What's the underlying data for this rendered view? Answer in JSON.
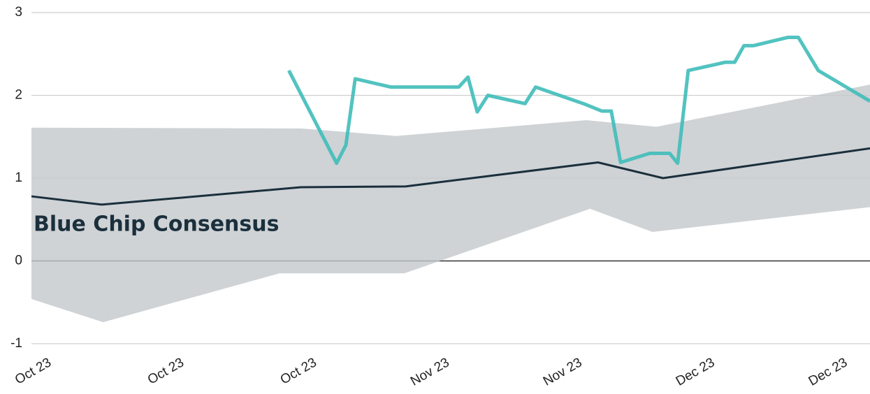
{
  "chart_data": {
    "type": "line",
    "annotation": "Blue Chip Consensus",
    "xlim": [
      0,
      6.32
    ],
    "xticks": [
      {
        "value": 0,
        "label": "Oct 23"
      },
      {
        "value": 1,
        "label": "Oct 23"
      },
      {
        "value": 2,
        "label": "Oct 23"
      },
      {
        "value": 3,
        "label": "Nov 23"
      },
      {
        "value": 4,
        "label": "Nov 23"
      },
      {
        "value": 5,
        "label": "Dec 23"
      },
      {
        "value": 6,
        "label": "Dec 23"
      }
    ],
    "ylim": [
      -1,
      3
    ],
    "yticks": [
      -1,
      0,
      1,
      2,
      3
    ],
    "grid": true,
    "band": {
      "color": "#c3c8cc",
      "upper": {
        "x": [
          0,
          2.03,
          2.75,
          4.18,
          4.71,
          6.32
        ],
        "values": [
          1.61,
          1.6,
          1.51,
          1.7,
          1.62,
          2.13
        ]
      },
      "lower": {
        "x": [
          0,
          0.54,
          1.87,
          2.81,
          4.21,
          4.68,
          6.32
        ],
        "values": [
          -0.46,
          -0.74,
          -0.15,
          -0.15,
          0.63,
          0.35,
          0.65
        ]
      }
    },
    "series": [
      {
        "color": "#1b2f3c",
        "width": 3,
        "x": [
          0,
          0.53,
          2.03,
          2.82,
          4.27,
          4.76,
          6.32
        ],
        "values": [
          0.78,
          0.68,
          0.89,
          0.9,
          1.19,
          1.0,
          1.36
        ]
      },
      {
        "color": "#3fbcb9",
        "width": 5,
        "x": [
          1.94,
          2.3,
          2.37,
          2.44,
          2.71,
          3.22,
          3.29,
          3.36,
          3.44,
          3.72,
          3.8,
          4.16,
          4.3,
          4.37,
          4.44,
          4.66,
          4.81,
          4.87,
          4.95,
          5.23,
          5.3,
          5.37,
          5.44,
          5.7,
          5.78,
          5.93,
          6.32
        ],
        "values": [
          2.3,
          1.18,
          1.4,
          2.2,
          2.1,
          2.1,
          2.22,
          1.8,
          2.0,
          1.9,
          2.1,
          1.9,
          1.81,
          1.81,
          1.19,
          1.3,
          1.3,
          1.18,
          2.3,
          2.4,
          2.4,
          2.6,
          2.6,
          2.7,
          2.7,
          2.3,
          1.93
        ]
      }
    ]
  }
}
